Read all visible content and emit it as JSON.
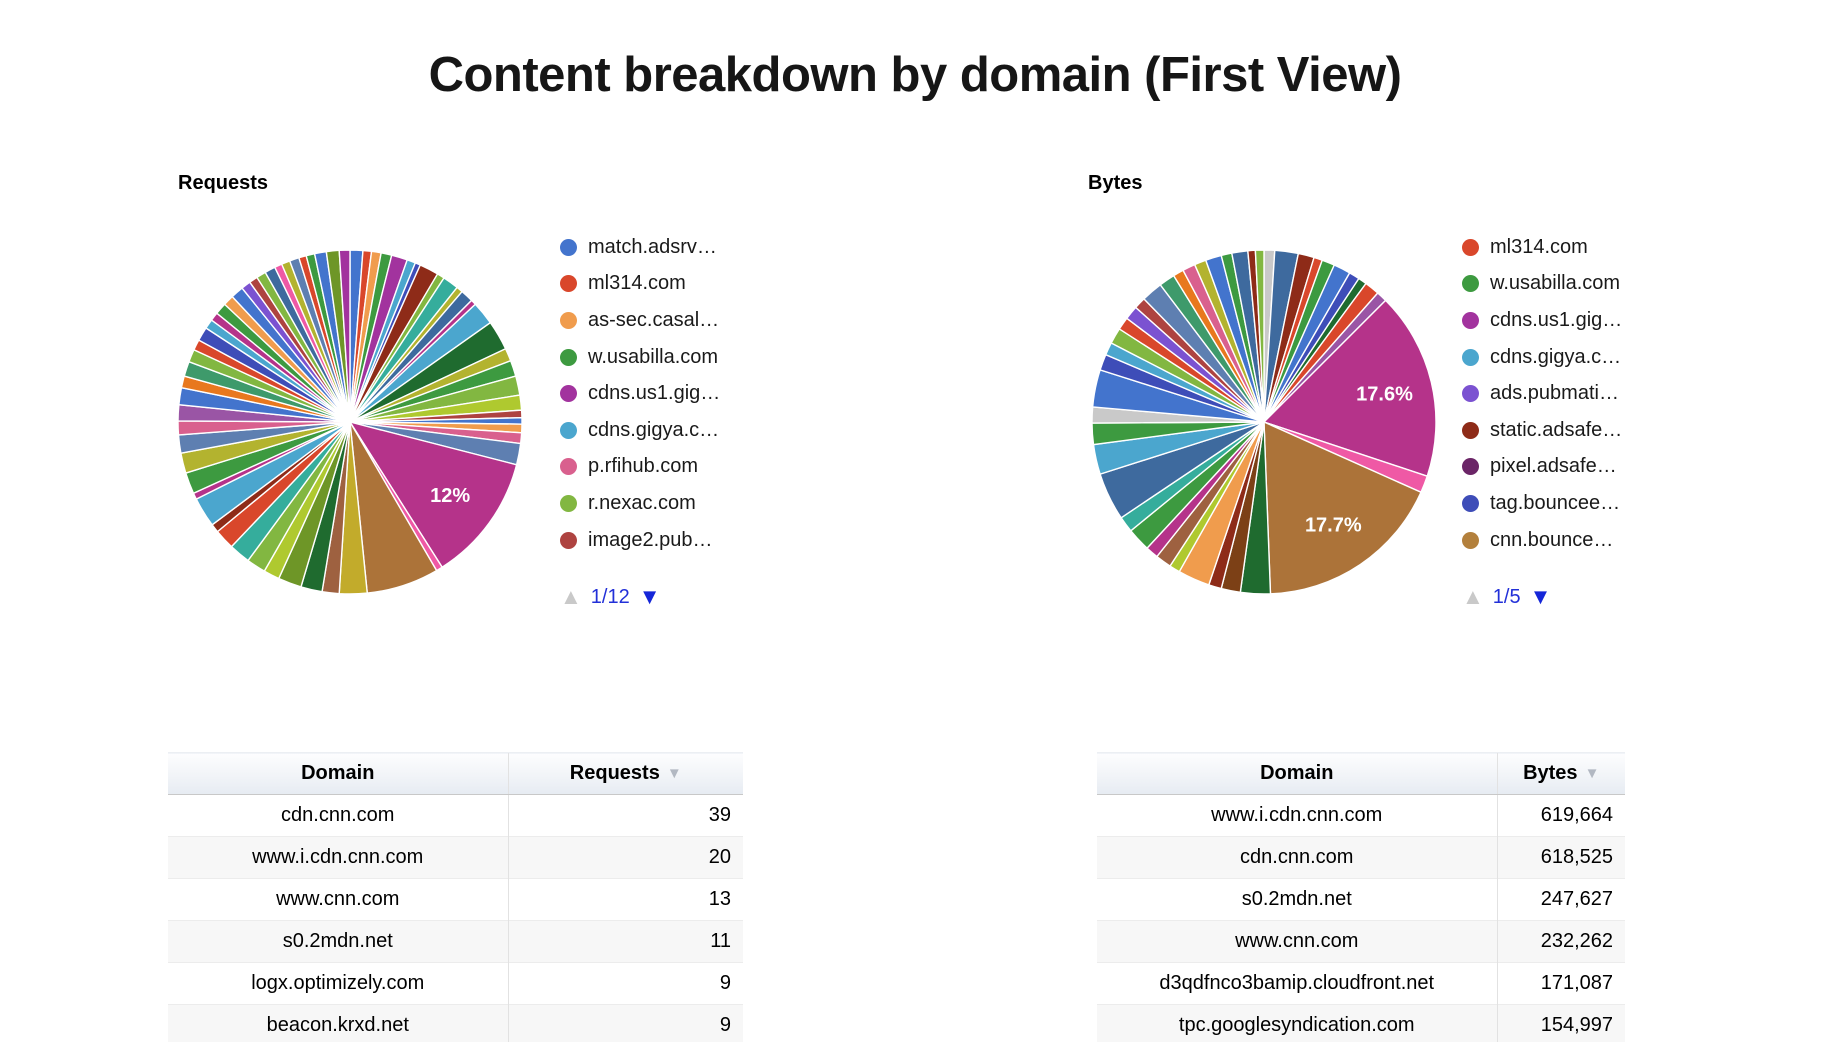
{
  "page_title": "Content breakdown by domain (First View)",
  "icons": {
    "pager_up": "▲",
    "pager_down": "▼",
    "sort_desc": "▼"
  },
  "colors": {
    "pager_active": "#1526d8",
    "pager_disabled": "#c9c9c9",
    "pager_text": "#2230d8",
    "sort_icon": "#b2b8c2",
    "partial_row_highlight": "#3660d6",
    "zebra_row": "#f7f7f7",
    "requests_big_slice": "#B5338A",
    "bytes_big_slice_1": "#B5338A",
    "bytes_big_slice_2": "#AC7339"
  },
  "chart_data": [
    {
      "type": "pie",
      "title": "Requests",
      "legend_position": "right",
      "legend_entries": [
        {
          "label": "match.adsrv…",
          "color": "#4374CD"
        },
        {
          "label": "ml314.com",
          "color": "#D9472B"
        },
        {
          "label": "as-sec.casal…",
          "color": "#F09C4D"
        },
        {
          "label": "w.usabilla.com",
          "color": "#3D9A40"
        },
        {
          "label": "cdns.us1.gig…",
          "color": "#A2339E"
        },
        {
          "label": "cdns.gigya.c…",
          "color": "#4BA6CE"
        },
        {
          "label": "p.rfihub.com",
          "color": "#D9608E"
        },
        {
          "label": "r.nexac.com",
          "color": "#82B741"
        },
        {
          "label": "image2.pub…",
          "color": "#AE4340"
        }
      ],
      "pager": {
        "label": "1/12",
        "up_enabled": false,
        "down_enabled": true
      },
      "percent_labels_shown": [
        "12%"
      ],
      "slices": [
        [
          1.2,
          "#4374CD"
        ],
        [
          0.8,
          "#D9472B"
        ],
        [
          0.9,
          "#F09C4D"
        ],
        [
          1.0,
          "#3D9A40"
        ],
        [
          1.5,
          "#A2339E"
        ],
        [
          0.8,
          "#4BA6CE"
        ],
        [
          0.5,
          "#3E4DB8"
        ],
        [
          1.8,
          "#8E2B18"
        ],
        [
          0.7,
          "#82B741"
        ],
        [
          1.5,
          "#35AD9C"
        ],
        [
          0.6,
          "#B3B32F"
        ],
        [
          1.2,
          "#3E6A9E"
        ],
        [
          0.5,
          "#B5338A"
        ],
        [
          2.2,
          "#4BA6CE"
        ],
        [
          2.8,
          "#1F6B2F"
        ],
        [
          1.2,
          "#B3B32F"
        ],
        [
          1.5,
          "#3D9A40"
        ],
        [
          1.8,
          "#82B741"
        ],
        [
          1.4,
          "#AFC92F"
        ],
        [
          0.7,
          "#AE4340"
        ],
        [
          0.6,
          "#4374CD"
        ],
        [
          0.8,
          "#F09C4D"
        ],
        [
          1.0,
          "#D9608E"
        ],
        [
          2.0,
          "#5E7FB1"
        ],
        [
          12.0,
          "#B5338A",
          "12%"
        ],
        [
          0.6,
          "#EF59A5"
        ],
        [
          6.8,
          "#AC7339"
        ],
        [
          2.6,
          "#C2AB2B"
        ],
        [
          1.6,
          "#9E6140"
        ],
        [
          2.0,
          "#1F6B2F"
        ],
        [
          2.2,
          "#6E9627"
        ],
        [
          1.5,
          "#AFC92F"
        ],
        [
          1.8,
          "#82B741"
        ],
        [
          2.0,
          "#35AD9C"
        ],
        [
          1.9,
          "#D9472B"
        ],
        [
          0.8,
          "#8E2B18"
        ],
        [
          2.8,
          "#4BA6CE"
        ],
        [
          0.6,
          "#B5338A"
        ],
        [
          2.0,
          "#3D9A40"
        ],
        [
          1.9,
          "#B3B32F"
        ],
        [
          1.7,
          "#5E7FB1"
        ],
        [
          1.3,
          "#D9608E"
        ],
        [
          1.5,
          "#9A55A5"
        ],
        [
          1.6,
          "#4374CD"
        ],
        [
          1.1,
          "#E8781E"
        ],
        [
          1.4,
          "#3E9A6B"
        ],
        [
          1.2,
          "#82B741"
        ],
        [
          1.0,
          "#D9472B"
        ],
        [
          1.3,
          "#3E4DB8"
        ],
        [
          0.9,
          "#4BA6CE"
        ],
        [
          0.8,
          "#B5338A"
        ],
        [
          1.1,
          "#3D9A40"
        ],
        [
          1.0,
          "#F09C4D"
        ],
        [
          1.2,
          "#4374CD"
        ],
        [
          0.9,
          "#7B52D1"
        ],
        [
          0.8,
          "#AE4340"
        ],
        [
          0.9,
          "#82B741"
        ],
        [
          1.0,
          "#3E6A9E"
        ],
        [
          0.7,
          "#EF59A5"
        ],
        [
          0.8,
          "#B3B32F"
        ],
        [
          0.9,
          "#5E7FB1"
        ],
        [
          0.7,
          "#D9472B"
        ],
        [
          0.8,
          "#3D9A40"
        ],
        [
          1.1,
          "#4374CD"
        ],
        [
          1.2,
          "#6E9627"
        ],
        [
          1.0,
          "#A2339E"
        ]
      ]
    },
    {
      "type": "pie",
      "title": "Bytes",
      "legend_position": "right",
      "legend_entries": [
        {
          "label": "ml314.com",
          "color": "#D9472B"
        },
        {
          "label": "w.usabilla.com",
          "color": "#3D9A40"
        },
        {
          "label": "cdns.us1.gig…",
          "color": "#A2339E"
        },
        {
          "label": "cdns.gigya.c…",
          "color": "#4BA6CE"
        },
        {
          "label": "ads.pubmati…",
          "color": "#7B52D1"
        },
        {
          "label": "static.adsafe…",
          "color": "#8E2B18"
        },
        {
          "label": "pixel.adsafe…",
          "color": "#6B2567"
        },
        {
          "label": "tag.bouncee…",
          "color": "#3E4DB8"
        },
        {
          "label": "cnn.bounce…",
          "color": "#B3803C"
        }
      ],
      "pager": {
        "label": "1/5",
        "up_enabled": false,
        "down_enabled": true
      },
      "percent_labels_shown": [
        "17.6%",
        "17.7%"
      ],
      "slices": [
        [
          1.0,
          "#C9C9C9"
        ],
        [
          2.2,
          "#3E6A9E"
        ],
        [
          1.5,
          "#8E2B18"
        ],
        [
          0.8,
          "#D9472B"
        ],
        [
          1.2,
          "#3D9A40"
        ],
        [
          1.6,
          "#4374CD"
        ],
        [
          1.0,
          "#3E4DB8"
        ],
        [
          0.8,
          "#1F6B2F"
        ],
        [
          1.4,
          "#D9472B"
        ],
        [
          1.0,
          "#9A55A5"
        ],
        [
          17.6,
          "#B5338A",
          "17.6%"
        ],
        [
          1.6,
          "#EF59A5"
        ],
        [
          17.7,
          "#AC7339",
          "17.7%"
        ],
        [
          2.8,
          "#1F6B2F"
        ],
        [
          1.8,
          "#7C4016"
        ],
        [
          1.2,
          "#8E2B18"
        ],
        [
          3.0,
          "#F09C4D"
        ],
        [
          1.0,
          "#AFC92F"
        ],
        [
          1.5,
          "#9E6140"
        ],
        [
          1.2,
          "#B5338A"
        ],
        [
          2.2,
          "#3D9A40"
        ],
        [
          1.5,
          "#35AD9C"
        ],
        [
          4.5,
          "#3E6A9E"
        ],
        [
          2.8,
          "#4BA6CE"
        ],
        [
          2.0,
          "#3D9A40"
        ],
        [
          1.5,
          "#C9C9C9"
        ],
        [
          3.5,
          "#4374CD"
        ],
        [
          1.5,
          "#3E4DB8"
        ],
        [
          1.2,
          "#4BA6CE"
        ],
        [
          1.5,
          "#82B741"
        ],
        [
          1.2,
          "#D9472B"
        ],
        [
          1.3,
          "#7B52D1"
        ],
        [
          1.1,
          "#AE4340"
        ],
        [
          2.0,
          "#5E7FB1"
        ],
        [
          1.5,
          "#3E9A6B"
        ],
        [
          1.0,
          "#E8781E"
        ],
        [
          1.2,
          "#D9608E"
        ],
        [
          1.1,
          "#B3B32F"
        ],
        [
          1.5,
          "#4374CD"
        ],
        [
          1.0,
          "#3D9A40"
        ],
        [
          1.5,
          "#3E6A9E"
        ],
        [
          0.7,
          "#8E2B18"
        ],
        [
          0.8,
          "#82B741"
        ]
      ]
    },
    {
      "type": "table",
      "columns": [
        "Domain",
        "Requests"
      ],
      "sorted_by": "Requests",
      "sort_direction": "desc",
      "rows": [
        [
          "cdn.cnn.com",
          "39"
        ],
        [
          "www.i.cdn.cnn.com",
          "20"
        ],
        [
          "www.cnn.com",
          "13"
        ],
        [
          "s0.2mdn.net",
          "11"
        ],
        [
          "logx.optimizely.com",
          "9"
        ],
        [
          "beacon.krxd.net",
          "9"
        ]
      ],
      "partial_row": {
        "visible": true,
        "highlighted": true
      }
    },
    {
      "type": "table",
      "columns": [
        "Domain",
        "Bytes"
      ],
      "sorted_by": "Bytes",
      "sort_direction": "desc",
      "rows": [
        [
          "www.i.cdn.cnn.com",
          "619,664"
        ],
        [
          "cdn.cnn.com",
          "618,525"
        ],
        [
          "s0.2mdn.net",
          "247,627"
        ],
        [
          "www.cnn.com",
          "232,262"
        ],
        [
          "d3qdfnco3bamip.cloudfront.net",
          "171,087"
        ],
        [
          "tpc.googlesyndication.com",
          "154,997"
        ]
      ],
      "partial_row": {
        "visible": true,
        "highlighted": false
      }
    }
  ]
}
